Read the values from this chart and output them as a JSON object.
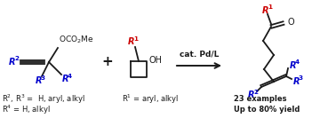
{
  "background_color": "#ffffff",
  "fig_width": 3.78,
  "fig_height": 1.42,
  "dpi": 100,
  "arrow_text": "cat. Pd/L",
  "blue": "#0000cc",
  "red": "#cc0000",
  "black": "#1a1a1a",
  "footnote_line1": "R$^{2}$, R$^{3}$ =  H, aryl, alkyl",
  "footnote_line2": "R$^{4}$ = H, alkyl",
  "footnote2": "R$^{1}$ = aryl, alkyl",
  "footnote3a": "23 examples",
  "footnote3b": "Up to 80% yield"
}
